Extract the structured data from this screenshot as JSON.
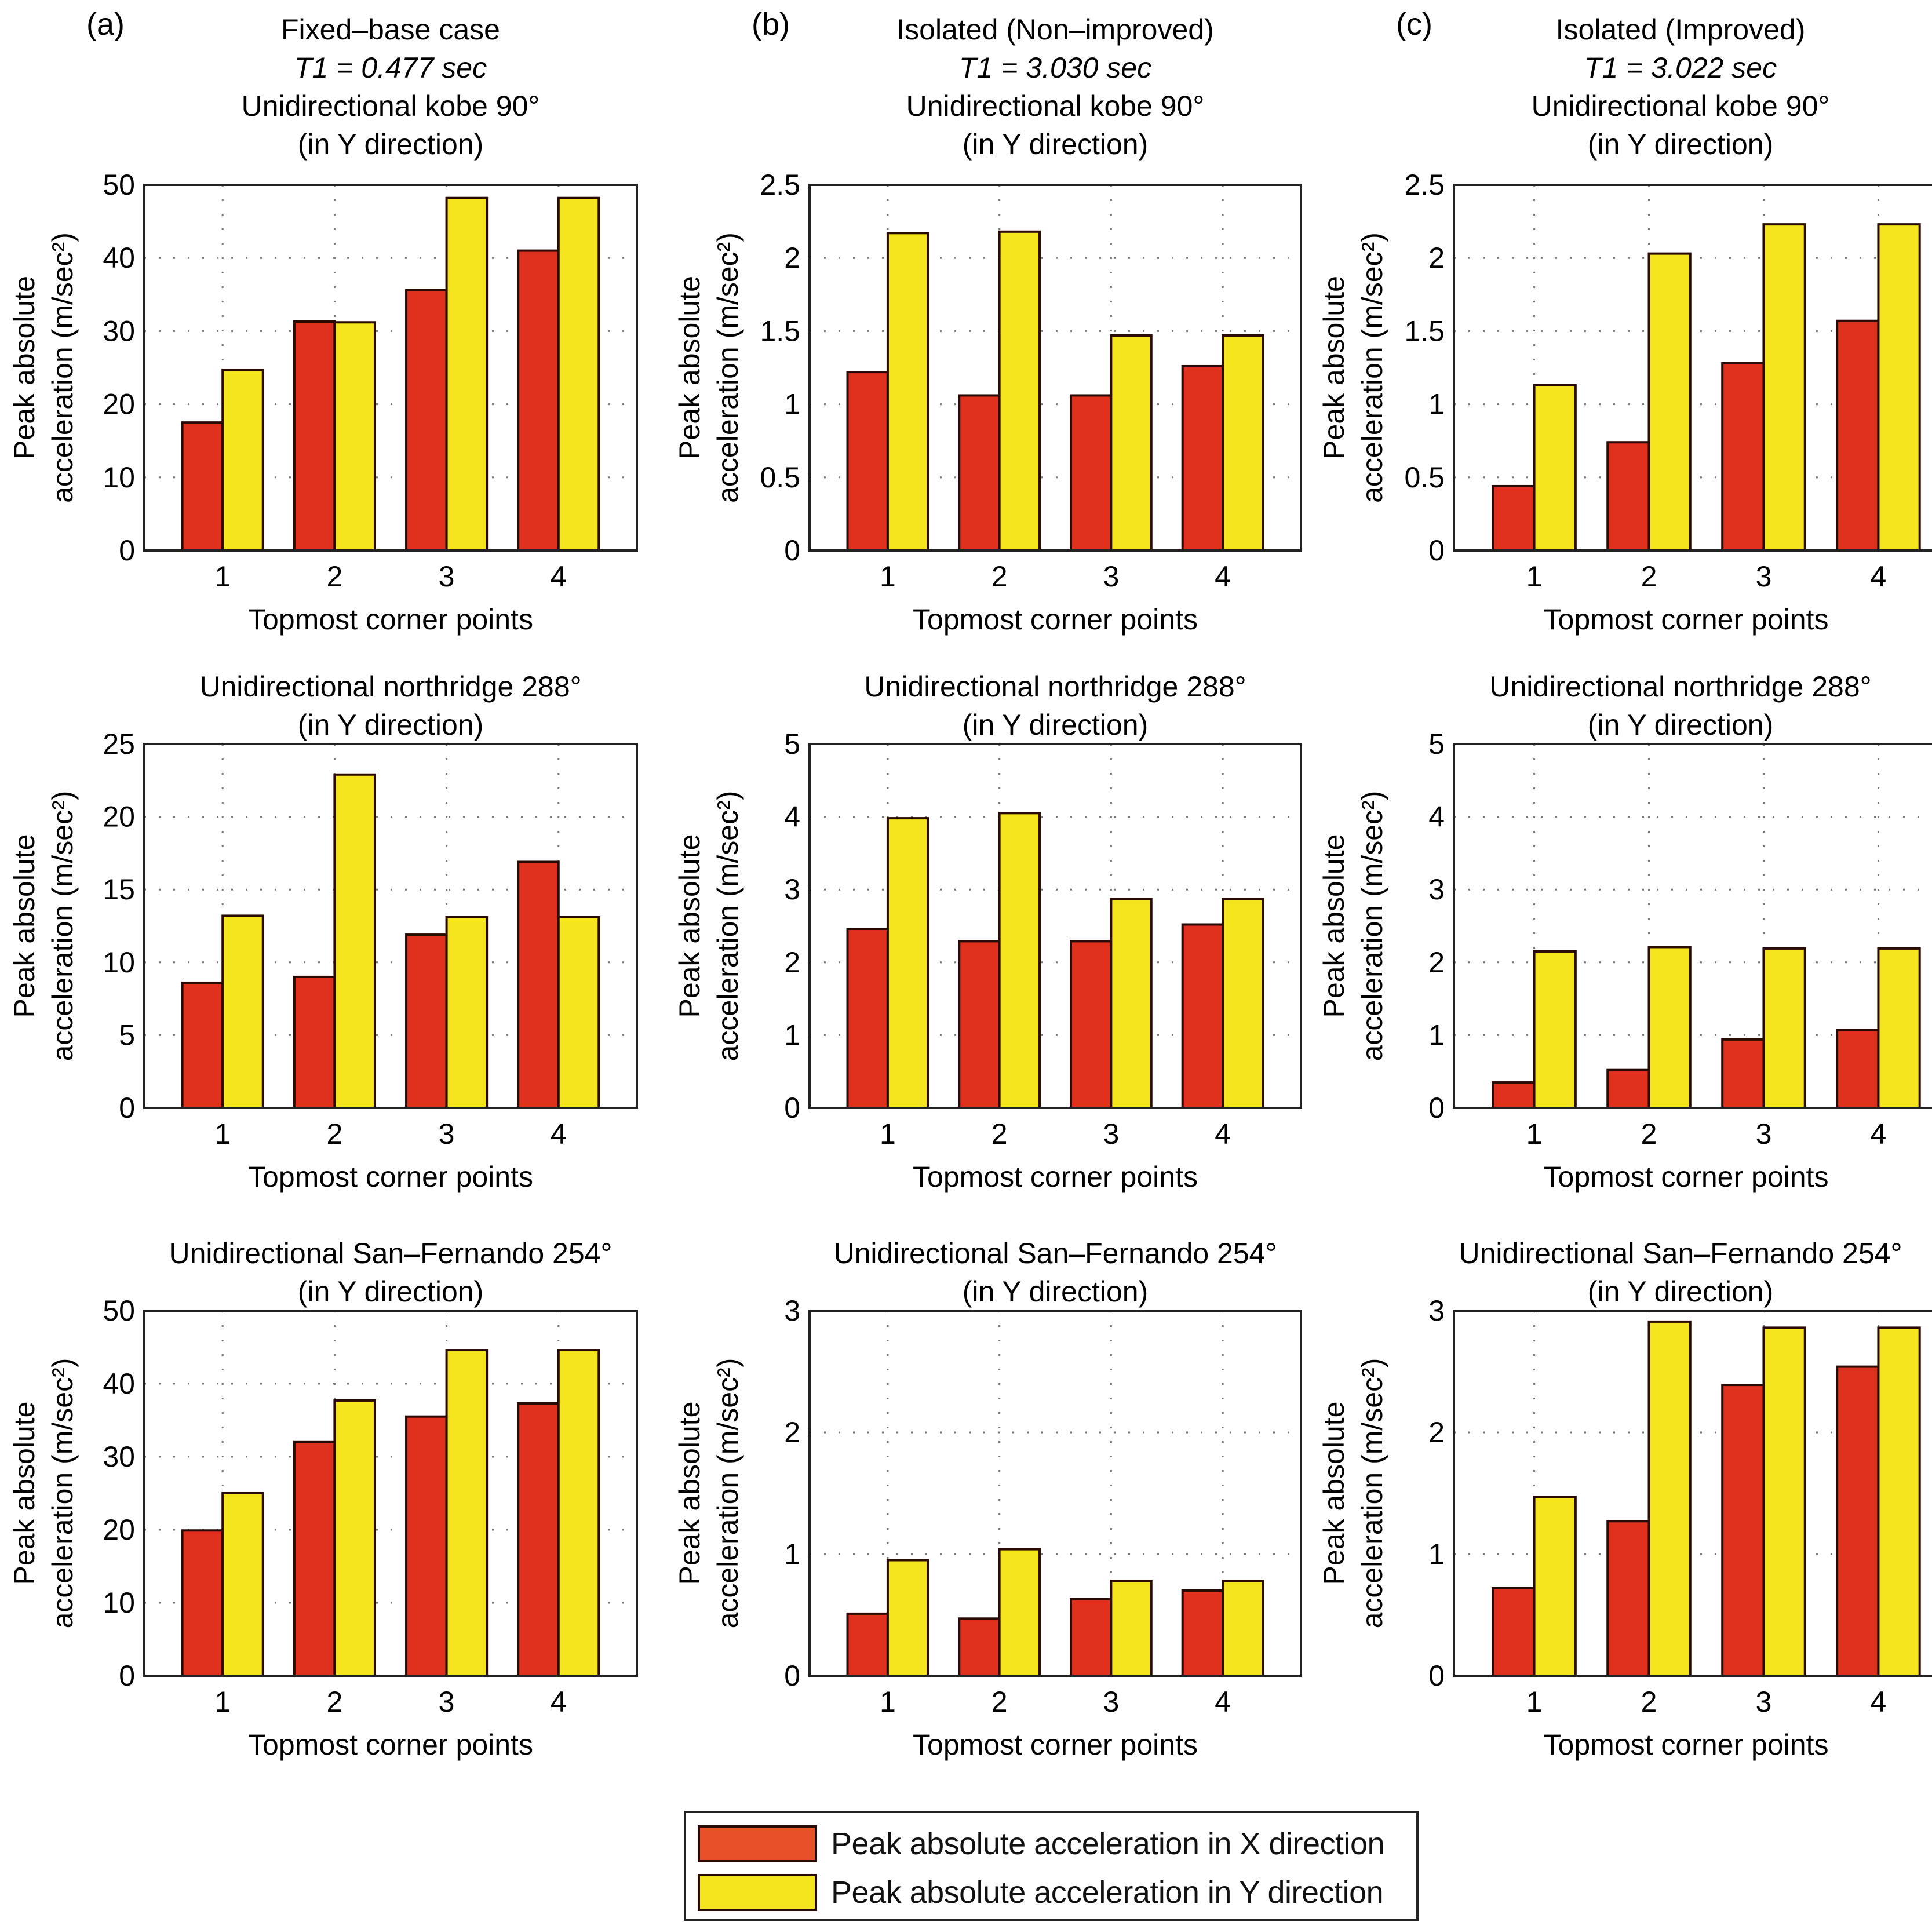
{
  "figure": {
    "colors": {
      "x_series": "#e0301e",
      "y_series": "#f5e51e",
      "legend_x_swatch": "#e8502a",
      "grid": "#777777",
      "axis": "#222222"
    },
    "legend": {
      "placement": "bottom-center",
      "items": [
        {
          "label": "Peak absolute acceleration in X direction",
          "color": "#e8502a"
        },
        {
          "label": "Peak absolute acceleration in Y direction",
          "color": "#f5e51e"
        }
      ]
    },
    "columns": [
      {
        "panel_label": "(a)",
        "case_title": "Fixed–base case",
        "period": "T1 = 0.477 sec"
      },
      {
        "panel_label": "(b)",
        "case_title": "Isolated (Non–improved)",
        "period": "T1 = 3.030 sec"
      },
      {
        "panel_label": "(c)",
        "case_title": "Isolated (Improved)",
        "period": "T1 = 3.022 sec"
      }
    ]
  },
  "chart_data": [
    {
      "type": "bar",
      "panel": "a-1",
      "title": [
        "Unidirectional kobe 90°",
        "(in Y direction)"
      ],
      "xlabel": "Topmost corner points",
      "ylabel": [
        "Peak absolute",
        "acceleration (m/sec²)"
      ],
      "categories": [
        "1",
        "2",
        "3",
        "4"
      ],
      "ylim": [
        0,
        50
      ],
      "yticks": [
        "0",
        "10",
        "20",
        "30",
        "40",
        "50"
      ],
      "grid": true,
      "series": [
        {
          "name": "Peak absolute acceleration in X direction",
          "values": [
            17.5,
            31.3,
            35.6,
            41.0
          ]
        },
        {
          "name": "Peak absolute acceleration in Y direction",
          "values": [
            24.7,
            31.2,
            48.2,
            48.2
          ]
        }
      ]
    },
    {
      "type": "bar",
      "panel": "b-1",
      "title": [
        "Unidirectional kobe 90°",
        "(in Y direction)"
      ],
      "xlabel": "Topmost corner points",
      "ylabel": [
        "Peak absolute",
        "acceleration (m/sec²)"
      ],
      "categories": [
        "1",
        "2",
        "3",
        "4"
      ],
      "ylim": [
        0,
        2.5
      ],
      "yticks": [
        "0",
        "0.5",
        "1",
        "1.5",
        "2",
        "2.5"
      ],
      "grid": true,
      "series": [
        {
          "name": "Peak absolute acceleration in X direction",
          "values": [
            1.22,
            1.06,
            1.06,
            1.26
          ]
        },
        {
          "name": "Peak absolute acceleration in Y direction",
          "values": [
            2.17,
            2.18,
            1.47,
            1.47
          ]
        }
      ]
    },
    {
      "type": "bar",
      "panel": "c-1",
      "title": [
        "Unidirectional kobe 90°",
        "(in Y direction)"
      ],
      "xlabel": "Topmost corner points",
      "ylabel": [
        "Peak absolute",
        "acceleration (m/sec²)"
      ],
      "categories": [
        "1",
        "2",
        "3",
        "4"
      ],
      "ylim": [
        0,
        2.5
      ],
      "yticks": [
        "0",
        "0.5",
        "1",
        "1.5",
        "2",
        "2.5"
      ],
      "grid": true,
      "series": [
        {
          "name": "Peak absolute acceleration in X direction",
          "values": [
            0.44,
            0.74,
            1.28,
            1.57
          ]
        },
        {
          "name": "Peak absolute acceleration in Y direction",
          "values": [
            1.13,
            2.03,
            2.23,
            2.23
          ]
        }
      ]
    },
    {
      "type": "bar",
      "panel": "a-2",
      "title": [
        "Unidirectional northridge 288°",
        "(in Y direction)"
      ],
      "xlabel": "Topmost corner points",
      "ylabel": [
        "Peak absolute",
        "acceleration (m/sec²)"
      ],
      "categories": [
        "1",
        "2",
        "3",
        "4"
      ],
      "ylim": [
        0,
        25
      ],
      "yticks": [
        "0",
        "5",
        "10",
        "15",
        "20",
        "25"
      ],
      "grid": true,
      "series": [
        {
          "name": "Peak absolute acceleration in X direction",
          "values": [
            8.6,
            9.0,
            11.9,
            16.9
          ]
        },
        {
          "name": "Peak absolute acceleration in Y direction",
          "values": [
            13.2,
            22.9,
            13.1,
            13.1
          ]
        }
      ]
    },
    {
      "type": "bar",
      "panel": "b-2",
      "title": [
        "Unidirectional northridge 288°",
        "(in Y direction)"
      ],
      "xlabel": "Topmost corner points",
      "ylabel": [
        "Peak absolute",
        "acceleration (m/sec²)"
      ],
      "categories": [
        "1",
        "2",
        "3",
        "4"
      ],
      "ylim": [
        0,
        5
      ],
      "yticks": [
        "0",
        "1",
        "2",
        "3",
        "4",
        "5"
      ],
      "grid": true,
      "series": [
        {
          "name": "Peak absolute acceleration in X direction",
          "values": [
            2.46,
            2.29,
            2.29,
            2.52
          ]
        },
        {
          "name": "Peak absolute acceleration in Y direction",
          "values": [
            3.98,
            4.05,
            2.87,
            2.87
          ]
        }
      ]
    },
    {
      "type": "bar",
      "panel": "c-2",
      "title": [
        "Unidirectional northridge 288°",
        "(in Y direction)"
      ],
      "xlabel": "Topmost corner points",
      "ylabel": [
        "Peak absolute",
        "acceleration (m/sec²)"
      ],
      "categories": [
        "1",
        "2",
        "3",
        "4"
      ],
      "ylim": [
        0,
        5
      ],
      "yticks": [
        "0",
        "1",
        "2",
        "3",
        "4",
        "5"
      ],
      "grid": true,
      "series": [
        {
          "name": "Peak absolute acceleration in X direction",
          "values": [
            0.35,
            0.52,
            0.94,
            1.07
          ]
        },
        {
          "name": "Peak absolute acceleration in Y direction",
          "values": [
            2.15,
            2.21,
            2.19,
            2.19
          ]
        }
      ]
    },
    {
      "type": "bar",
      "panel": "a-3",
      "title": [
        "Unidirectional San–Fernando 254°",
        "(in Y direction)"
      ],
      "xlabel": "Topmost corner points",
      "ylabel": [
        "Peak absolute",
        "acceleration (m/sec²)"
      ],
      "categories": [
        "1",
        "2",
        "3",
        "4"
      ],
      "ylim": [
        0,
        50
      ],
      "yticks": [
        "0",
        "10",
        "20",
        "30",
        "40",
        "50"
      ],
      "grid": true,
      "series": [
        {
          "name": "Peak absolute acceleration in X direction",
          "values": [
            19.9,
            32.0,
            35.5,
            37.3
          ]
        },
        {
          "name": "Peak absolute acceleration in Y direction",
          "values": [
            25.0,
            37.7,
            44.6,
            44.6
          ]
        }
      ]
    },
    {
      "type": "bar",
      "panel": "b-3",
      "title": [
        "Unidirectional San–Fernando 254°",
        "(in Y direction)"
      ],
      "xlabel": "Topmost corner points",
      "ylabel": [
        "Peak absolute",
        "acceleration (m/sec²)"
      ],
      "categories": [
        "1",
        "2",
        "3",
        "4"
      ],
      "ylim": [
        0,
        3
      ],
      "yticks": [
        "0",
        "1",
        "2",
        "3"
      ],
      "grid": true,
      "series": [
        {
          "name": "Peak absolute acceleration in X direction",
          "values": [
            0.51,
            0.47,
            0.63,
            0.7
          ]
        },
        {
          "name": "Peak absolute acceleration in Y direction",
          "values": [
            0.95,
            1.04,
            0.78,
            0.78
          ]
        }
      ]
    },
    {
      "type": "bar",
      "panel": "c-3",
      "title": [
        "Unidirectional San–Fernando 254°",
        "(in Y direction)"
      ],
      "xlabel": "Topmost corner points",
      "ylabel": [
        "Peak absolute",
        "acceleration (m/sec²)"
      ],
      "categories": [
        "1",
        "2",
        "3",
        "4"
      ],
      "ylim": [
        0,
        3
      ],
      "yticks": [
        "0",
        "1",
        "2",
        "3"
      ],
      "grid": true,
      "series": [
        {
          "name": "Peak absolute acceleration in X direction",
          "values": [
            0.72,
            1.27,
            2.39,
            2.54
          ]
        },
        {
          "name": "Peak absolute acceleration in Y direction",
          "values": [
            1.47,
            2.91,
            2.86,
            2.86
          ]
        }
      ]
    }
  ]
}
